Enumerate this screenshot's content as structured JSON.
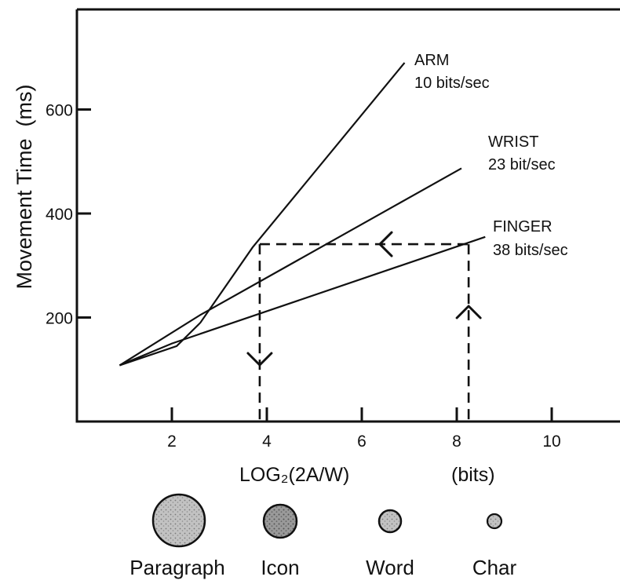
{
  "chart_data": {
    "type": "line",
    "xlabel": "LOG₂(2A/W)",
    "xunit": "(bits)",
    "ylabel": "Movement Time  (ms)",
    "xlim": [
      0,
      11.5
    ],
    "ylim": [
      0,
      780
    ],
    "x_ticks": [
      2,
      4,
      6,
      8,
      10
    ],
    "x_tick_labels": [
      "2",
      "4",
      "6",
      "8",
      "10"
    ],
    "y_ticks": [
      200,
      400,
      600
    ],
    "y_tick_labels": [
      "200",
      "400",
      "600"
    ],
    "grid": false,
    "series": [
      {
        "name": "ARM",
        "rate": "10 bits/sec",
        "points": [
          [
            0.9,
            108
          ],
          [
            2.1,
            145
          ],
          [
            2.6,
            190
          ],
          [
            3.7,
            335
          ],
          [
            6.9,
            690
          ]
        ]
      },
      {
        "name": "WRIST",
        "rate": "23 bit/sec",
        "points": [
          [
            0.9,
            108
          ],
          [
            2.6,
            205
          ],
          [
            8.1,
            487
          ]
        ]
      },
      {
        "name": "FINGER",
        "rate": "38 bits/sec",
        "points": [
          [
            0.9,
            108
          ],
          [
            2.0,
            150
          ],
          [
            8.6,
            355
          ]
        ]
      }
    ],
    "annotations": {
      "horizontal_dashed_y": 341,
      "left_dashed_x": 3.85,
      "right_dashed_x": 8.25
    },
    "legend_items": [
      {
        "label": "Paragraph",
        "relative_size": 1.0
      },
      {
        "label": "Icon",
        "relative_size": 0.65
      },
      {
        "label": "Word",
        "relative_size": 0.43
      },
      {
        "label": "Char",
        "relative_size": 0.28
      }
    ]
  },
  "colors": {
    "ink": "#111111",
    "circle_fill": "#b8b8b8",
    "circle_fill_dark": "#8c8c8c"
  }
}
